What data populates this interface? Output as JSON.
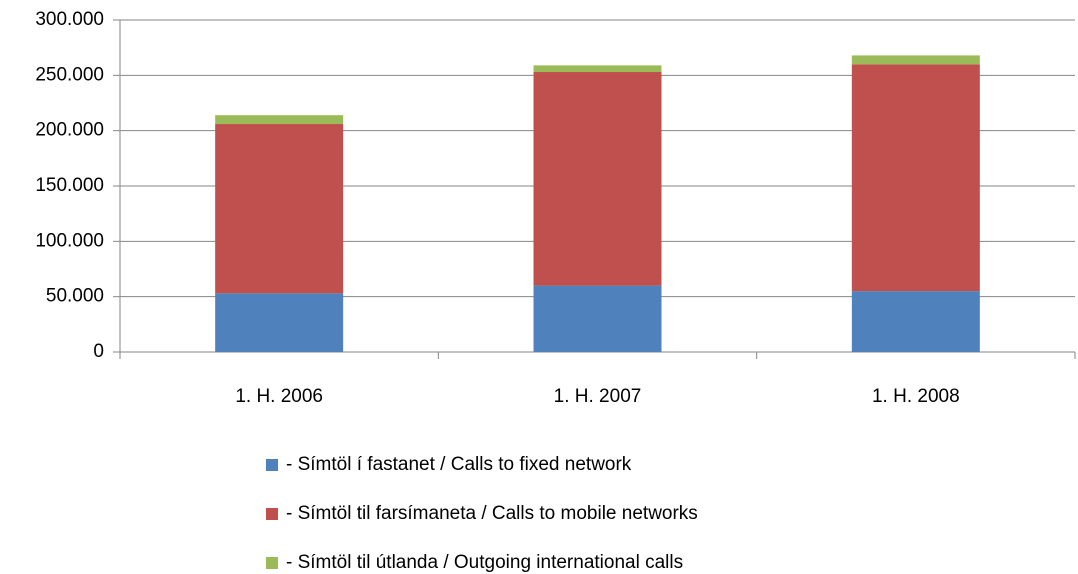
{
  "chart_data": {
    "type": "stacked_bar",
    "categories": [
      "1. H. 2006",
      "1. H. 2007",
      "1. H. 2008"
    ],
    "series": [
      {
        "name": "- Símtöl í fastanet / Calls to fixed network",
        "color": "#4f81bd",
        "values": [
          53000,
          60000,
          55000
        ]
      },
      {
        "name": "- Símtöl til farsímaneta / Calls to mobile networks",
        "color": "#c0504d",
        "values": [
          153000,
          193000,
          205000
        ]
      },
      {
        "name": "- Símtöl til útlanda / Outgoing international calls",
        "color": "#9bbb59",
        "values": [
          8000,
          6000,
          8000
        ]
      }
    ],
    "ylim": [
      0,
      300000
    ],
    "yticks": [
      0,
      {
        "value": 50000,
        "label": "50.000"
      },
      {
        "value": 100000,
        "label": "100.000"
      },
      {
        "value": 150000,
        "label": "150.000"
      },
      {
        "value": 200000,
        "label": "200.000"
      },
      {
        "value": 250000,
        "label": "250.000"
      },
      {
        "value": 300000,
        "label": "300.000"
      }
    ],
    "grid": true,
    "legend": "bottom"
  }
}
